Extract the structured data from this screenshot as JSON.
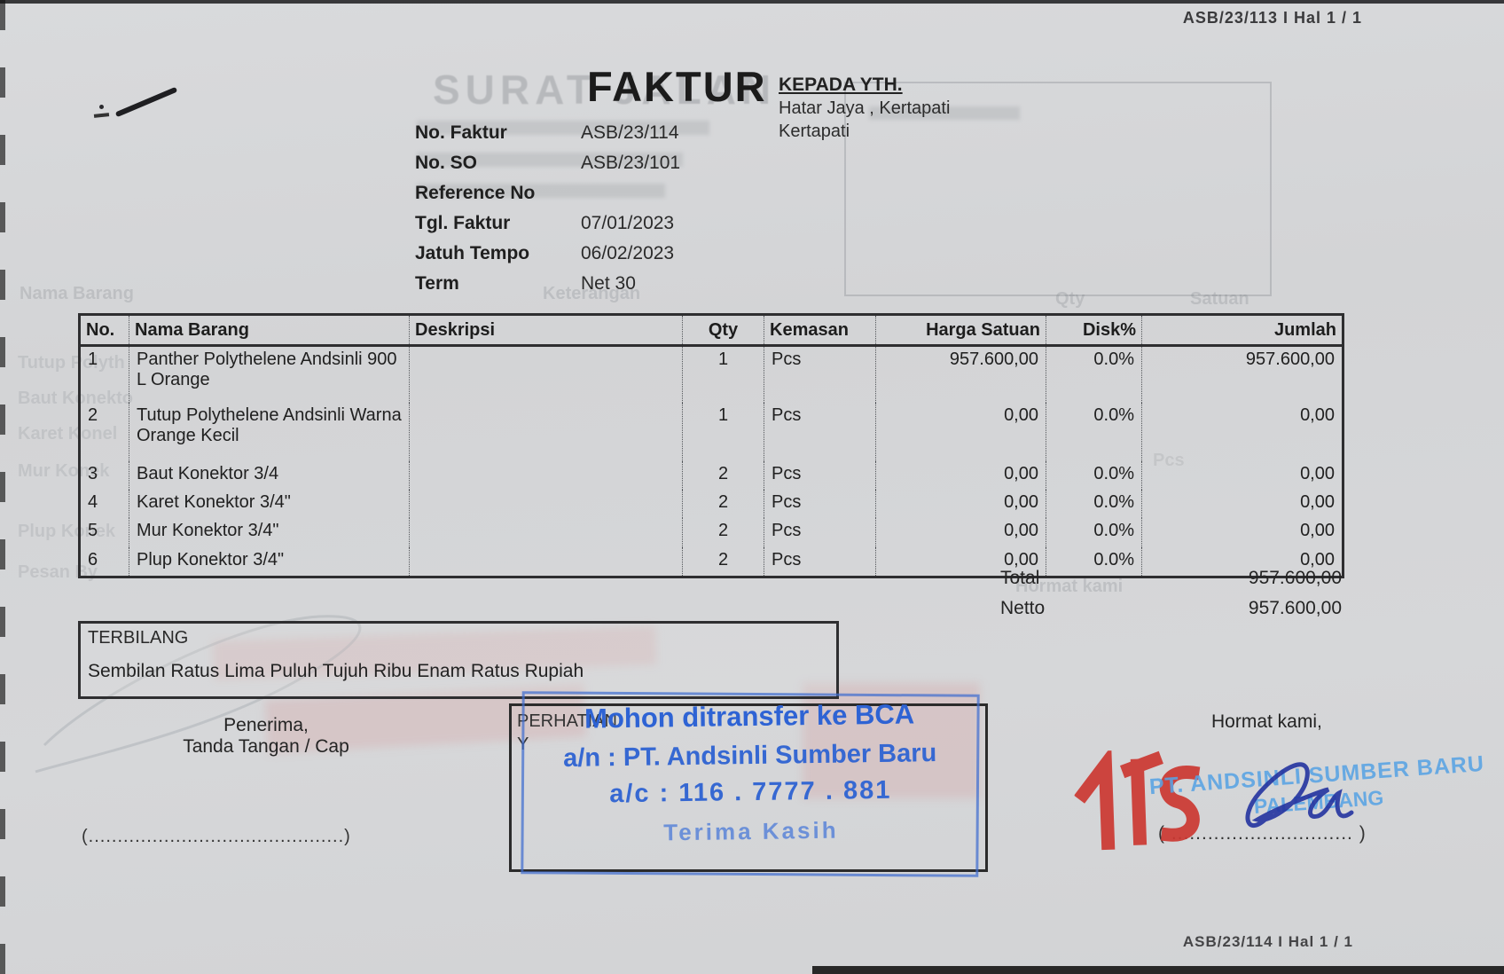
{
  "page": {
    "header_ref": "ASB/23/113 I Hal 1 / 1",
    "footer_ref": "ASB/23/114 I Hal 1 / 1",
    "title": "FAKTUR"
  },
  "recipient": {
    "label": "KEPADA YTH.",
    "line1": "Hatar Jaya , Kertapati",
    "line2": "Kertapati"
  },
  "meta": {
    "fields": [
      {
        "label": "No. Faktur",
        "value": "ASB/23/114"
      },
      {
        "label": "No. SO",
        "value": "ASB/23/101"
      },
      {
        "label": "Reference No",
        "value": ""
      },
      {
        "label": "Tgl. Faktur",
        "value": "07/01/2023"
      },
      {
        "label": "Jatuh Tempo",
        "value": "06/02/2023"
      },
      {
        "label": "Term",
        "value": "Net 30"
      }
    ]
  },
  "table": {
    "columns": [
      "No.",
      "Nama Barang",
      "Deskripsi",
      "Qty",
      "Kemasan",
      "Harga Satuan",
      "Disk%",
      "Jumlah"
    ],
    "row_keys": [
      "no",
      "nama",
      "deskripsi",
      "qty",
      "kemasan",
      "harga",
      "disk",
      "jumlah"
    ],
    "rows": [
      {
        "no": "1",
        "nama": "Panther Polythelene Andsinli 900 L Orange",
        "deskripsi": "",
        "qty": "1",
        "kemasan": "Pcs",
        "harga": "957.600,00",
        "disk": "0.0%",
        "jumlah": "957.600,00"
      },
      {
        "no": "2",
        "nama": "Tutup Polythelene Andsinli Warna Orange Kecil",
        "deskripsi": "",
        "qty": "1",
        "kemasan": "Pcs",
        "harga": "0,00",
        "disk": "0.0%",
        "jumlah": "0,00"
      },
      {
        "no": "3",
        "nama": "Baut Konektor 3/4",
        "deskripsi": "",
        "qty": "2",
        "kemasan": "Pcs",
        "harga": "0,00",
        "disk": "0.0%",
        "jumlah": "0,00"
      },
      {
        "no": "4",
        "nama": "Karet Konektor 3/4\"",
        "deskripsi": "",
        "qty": "2",
        "kemasan": "Pcs",
        "harga": "0,00",
        "disk": "0.0%",
        "jumlah": "0,00"
      },
      {
        "no": "5",
        "nama": "Mur Konektor 3/4\"",
        "deskripsi": "",
        "qty": "2",
        "kemasan": "Pcs",
        "harga": "0,00",
        "disk": "0.0%",
        "jumlah": "0,00"
      },
      {
        "no": "6",
        "nama": "Plup Konektor 3/4\"",
        "deskripsi": "",
        "qty": "2",
        "kemasan": "Pcs",
        "harga": "0,00",
        "disk": "0.0%",
        "jumlah": "0,00"
      }
    ]
  },
  "summary": {
    "total_label": "Total",
    "total_value": "957.600,00",
    "netto_label": "Netto",
    "netto_value": "957.600,00"
  },
  "terbilang": {
    "label": "TERBILANG",
    "text": "Sembilan Ratus Lima Puluh Tujuh Ribu Enam Ratus Rupiah"
  },
  "signature_left": {
    "line1": "Penerima,",
    "line2": "Tanda Tangan / Cap",
    "dots": "(............................................)"
  },
  "attention_box": {
    "printed1": "PERHATIAN",
    "printed2": "Y",
    "stamp_line1": "Mohon ditransfer ke BCA",
    "stamp_line2": "a/n : PT. Andsinli Sumber Baru",
    "stamp_line3": "a/c : 116 . 7777 . 881",
    "stamp_line4": "Terima Kasih"
  },
  "signature_right": {
    "greeting": "Hormat kami,",
    "company_stamp_line1": "PT. ANDSINLI SUMBER BARU",
    "company_stamp_line2": "PALEMBANG",
    "dots": "( .............................. )"
  },
  "ghosts": {
    "title": "SURAT JALAN",
    "header_nama": "Nama Barang",
    "header_keterangan": "Keterangan",
    "header_qty": "Qty",
    "header_satuan": "Satuan",
    "margin_items": [
      "Tutup Polyth",
      "Baut Konekto",
      "Karet Konel",
      "Mur Konek",
      "Plup Konek",
      "Pesan By"
    ],
    "pcs": "Pcs",
    "hormat": "Hormat kami"
  },
  "colors": {
    "stamp_blue": "#2e63d4",
    "stamp_light_blue": "#58a3e4",
    "stamp_red": "#cc3832",
    "signature_blue": "#2433a0",
    "paper": "#d5d6d8"
  }
}
